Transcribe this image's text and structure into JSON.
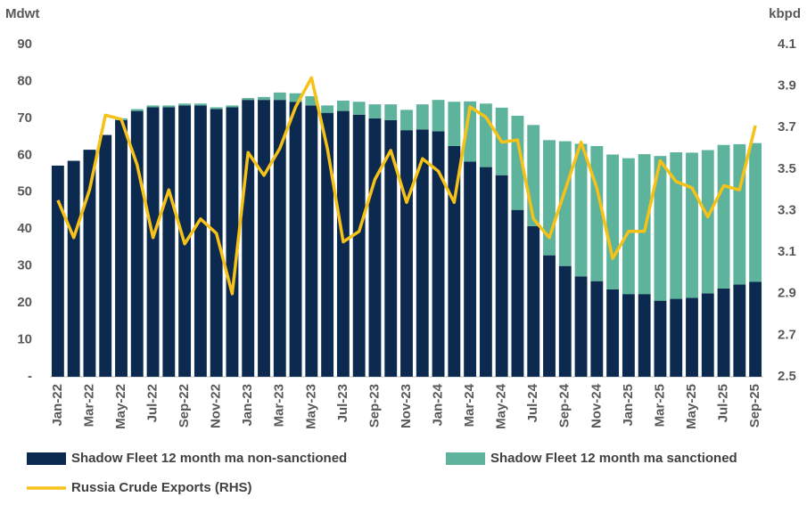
{
  "chart_data": {
    "type": "bar-line",
    "y_label": "Mdwt",
    "y2_label": "kbpd",
    "categories": [
      "Jan-22",
      null,
      "Mar-22",
      null,
      "May-22",
      null,
      "Jul-22",
      null,
      "Sep-22",
      null,
      "Nov-22",
      null,
      "Jan-23",
      null,
      "Mar-23",
      null,
      "May-23",
      null,
      "Jul-23",
      null,
      "Sep-23",
      null,
      "Nov-23",
      null,
      "Jan-24",
      null,
      "Mar-24",
      null,
      "May-24",
      null,
      "Jul-24",
      null,
      "Sep-24",
      null,
      "Nov-24",
      null,
      "Jan-25",
      null,
      "Mar-25",
      null,
      "May-25",
      null,
      "Jul-25",
      null,
      "Sep-25"
    ],
    "series": [
      {
        "name": "Shadow Fleet 12 month ma non-sanctioned",
        "type": "bar",
        "color": "#0c2a50",
        "values": [
          57.2,
          58.5,
          61.5,
          65.5,
          69.5,
          72,
          73,
          73,
          73.5,
          73.5,
          72.5,
          73,
          75,
          75,
          75,
          74.5,
          73.5,
          71.5,
          72,
          71,
          70,
          69.5,
          66.8,
          67,
          66.5,
          62.5,
          58.3,
          56.8,
          54.6,
          45.2,
          40.8,
          32.9,
          30,
          27.2,
          25.9,
          23.7,
          22.4,
          22.4,
          20.6,
          21.1,
          21.4,
          22.6,
          23.9,
          25,
          25.7
        ]
      },
      {
        "name": "Shadow Fleet 12 month ma sanctioned",
        "type": "bar",
        "color": "#5db39c",
        "values": [
          0,
          0,
          0,
          0,
          0.5,
          0.5,
          0.5,
          0.5,
          0.5,
          0.5,
          0.5,
          0.5,
          0.5,
          0.8,
          2,
          2.3,
          2.5,
          2,
          2.8,
          3.5,
          3.8,
          4.3,
          5.5,
          6.8,
          8.5,
          12,
          16.3,
          17.2,
          18.3,
          25.5,
          27.4,
          31.2,
          33.8,
          35.9,
          36.6,
          36.5,
          36.8,
          37.9,
          39.2,
          39.7,
          39.3,
          38.8,
          38.9,
          38,
          37.6
        ]
      },
      {
        "name": "Russia Crude Exports (RHS)",
        "type": "line",
        "axis": "y2",
        "color": "#f6c218",
        "values": [
          3.35,
          3.17,
          3.4,
          3.76,
          3.74,
          3.52,
          3.17,
          3.4,
          3.14,
          3.26,
          3.19,
          2.9,
          3.58,
          3.47,
          3.6,
          3.8,
          3.94,
          3.6,
          3.15,
          3.2,
          3.45,
          3.59,
          3.34,
          3.55,
          3.49,
          3.34,
          3.8,
          3.75,
          3.63,
          3.64,
          3.26,
          3.17,
          3.4,
          3.63,
          3.41,
          3.07,
          3.2,
          3.2,
          3.54,
          3.44,
          3.41,
          3.27,
          3.42,
          3.4,
          3.71
        ]
      }
    ],
    "stacked": true,
    "ylim": [
      0,
      90
    ],
    "yticks": [
      {
        "value": 0,
        "label": "-"
      },
      10,
      20,
      30,
      40,
      50,
      60,
      70,
      80,
      90
    ],
    "y2lim": [
      2.5,
      4.1
    ],
    "y2ticks": [
      2.5,
      2.7,
      2.9,
      3.1,
      3.3,
      3.5,
      3.7,
      3.9,
      4.1
    ],
    "grid": false,
    "legend": "bottom"
  }
}
